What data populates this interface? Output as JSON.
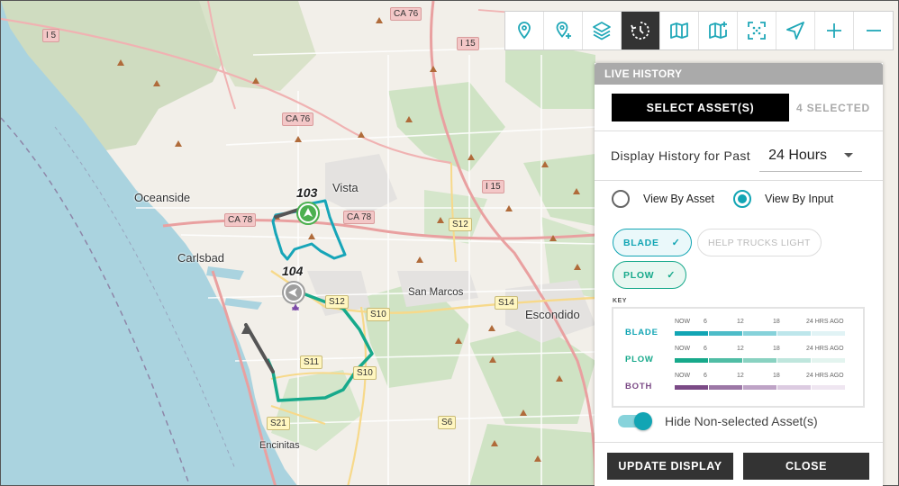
{
  "map": {
    "places": [
      {
        "id": "oceanside",
        "label": "Oceanside"
      },
      {
        "id": "vista",
        "label": "Vista"
      },
      {
        "id": "carlsbad",
        "label": "Carlsbad"
      },
      {
        "id": "san-marcos",
        "label": "San Marcos"
      },
      {
        "id": "escondido",
        "label": "Escondido"
      },
      {
        "id": "encinitas",
        "label": "Encinitas"
      }
    ],
    "shields": [
      {
        "id": "i5",
        "label": "I 5",
        "kind": "inter"
      },
      {
        "id": "ca76-top",
        "label": "CA 76",
        "kind": "state"
      },
      {
        "id": "ca76-mid",
        "label": "CA 76",
        "kind": "state"
      },
      {
        "id": "i15-top",
        "label": "I 15",
        "kind": "inter"
      },
      {
        "id": "i15-mid",
        "label": "I 15",
        "kind": "inter"
      },
      {
        "id": "ca78-left",
        "label": "CA 78",
        "kind": "state"
      },
      {
        "id": "ca78-right",
        "label": "CA 78",
        "kind": "state"
      },
      {
        "id": "s12-a",
        "label": "S12",
        "kind": "county"
      },
      {
        "id": "s12-b",
        "label": "S12",
        "kind": "county"
      },
      {
        "id": "s14",
        "label": "S14",
        "kind": "county"
      },
      {
        "id": "s10-a",
        "label": "S10",
        "kind": "county"
      },
      {
        "id": "s10-b",
        "label": "S10",
        "kind": "county"
      },
      {
        "id": "s11",
        "label": "S11",
        "kind": "county"
      },
      {
        "id": "s21",
        "label": "S21",
        "kind": "county"
      },
      {
        "id": "s6",
        "label": "S6",
        "kind": "county"
      }
    ],
    "assets": [
      {
        "id": "103",
        "label": "103",
        "color": "#4cb050"
      },
      {
        "id": "104",
        "label": "104",
        "color": "#9e9e9e"
      }
    ]
  },
  "toolbar": {
    "tools": [
      {
        "id": "location-pin",
        "icon": "location-pin-icon"
      },
      {
        "id": "add-pin",
        "icon": "add-pin-icon"
      },
      {
        "id": "layers",
        "icon": "layers-icon"
      },
      {
        "id": "live-history",
        "icon": "history-clock-icon",
        "active": true
      },
      {
        "id": "map",
        "icon": "map-icon"
      },
      {
        "id": "map-add",
        "icon": "map-add-icon"
      },
      {
        "id": "fit-bounds",
        "icon": "fit-bounds-icon"
      },
      {
        "id": "navigate",
        "icon": "navigate-arrow-icon"
      },
      {
        "id": "zoom-in",
        "icon": "plus-icon"
      },
      {
        "id": "zoom-out",
        "icon": "minus-icon"
      }
    ]
  },
  "panel": {
    "title": "LIVE HISTORY",
    "select_button": "SELECT ASSET(S)",
    "selected_count": "4 SELECTED",
    "period_label": "Display History for Past",
    "period_value": "24 Hours",
    "view_by_asset": "View By Asset",
    "view_by_input": "View By Input",
    "view_mode": "input",
    "inputs": [
      {
        "id": "blade",
        "label": "BLADE",
        "selected": true,
        "check": "✓"
      },
      {
        "id": "help",
        "label": "HELP TRUCKS LIGHT",
        "selected": false
      },
      {
        "id": "plow",
        "label": "PLOW",
        "selected": true,
        "check": "✓"
      }
    ],
    "key_title": "KEY",
    "key_ticks": [
      "NOW",
      "6",
      "12",
      "18",
      "24 HRS AGO"
    ],
    "key_rows": [
      {
        "id": "blade",
        "label": "BLADE",
        "color": "#12a5b4",
        "shades": [
          "#12a5b4",
          "#4dbcc8",
          "#86d2da",
          "#bde6eb",
          "#e1f3f5"
        ]
      },
      {
        "id": "plow",
        "label": "PLOW",
        "color": "#17a98b",
        "shades": [
          "#17a98b",
          "#50bda5",
          "#89d2c1",
          "#bfe6dd",
          "#e3f4ef"
        ]
      },
      {
        "id": "both",
        "label": "BOTH",
        "color": "#7b4a86",
        "shades": [
          "#7b4a86",
          "#9c77a6",
          "#bea3c6",
          "#dccbe1",
          "#efe6f1"
        ]
      }
    ],
    "hide_toggle_label": "Hide Non-selected Asset(s)",
    "hide_toggle_on": true,
    "update_button": "UPDATE DISPLAY",
    "close_button": "CLOSE"
  }
}
